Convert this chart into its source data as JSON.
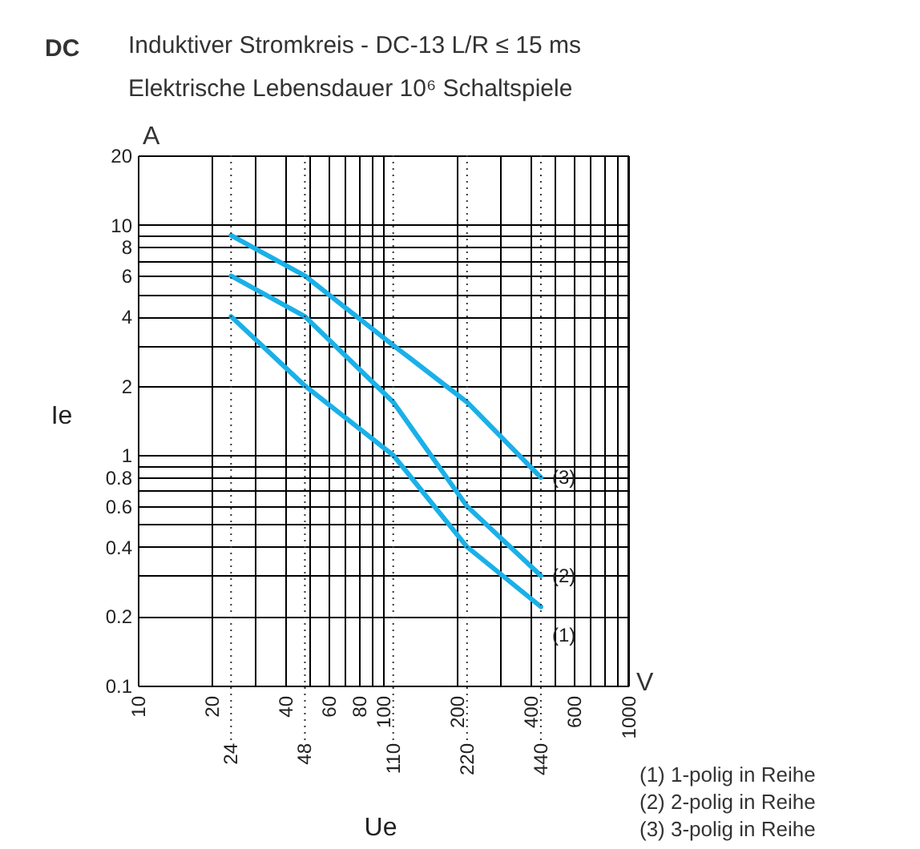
{
  "chart_data": {
    "type": "line",
    "title": "Induktiver Stromkreis - DC-13 L/R  ≤ 15 ms",
    "subtitle": "Elektrische Lebensdauer 10⁶ Schaltspiele",
    "xlabel": "Ue",
    "ylabel": "Ie",
    "annotations": [
      "DC",
      "A",
      "V",
      "(1) 1-polig in Reihe",
      "(2) 2-polig in Reihe",
      "(3) 3-polig in Reihe"
    ],
    "x": [
      24,
      48,
      110,
      220,
      440
    ],
    "series": [
      {
        "name": "(1)",
        "color": "#1ab0e8",
        "values": [
          4,
          2,
          1,
          0.4,
          0.22
        ]
      },
      {
        "name": "(2)",
        "color": "#1ab0e8",
        "values": [
          6,
          4,
          1.7,
          0.6,
          0.3
        ]
      },
      {
        "name": "(3)",
        "color": "#1ab0e8",
        "values": [
          9,
          6,
          3,
          1.7,
          0.8
        ]
      }
    ],
    "log": "xy",
    "xlim": [
      10,
      1000
    ],
    "ylim": [
      0.1,
      20
    ],
    "xticks": [
      10,
      20,
      {
        "value": 30,
        "label": null
      },
      40,
      {
        "value": 50,
        "label": null
      },
      60,
      {
        "value": 70,
        "label": null
      },
      80,
      {
        "value": 90,
        "label": null
      },
      100,
      200,
      {
        "value": 300,
        "label": null
      },
      400,
      {
        "value": 500,
        "label": null
      },
      600,
      {
        "value": 700,
        "label": null
      },
      {
        "value": 800,
        "label": null
      },
      {
        "value": 900,
        "label": null
      },
      1000
    ],
    "yticks": [
      0.1,
      0.2,
      {
        "value": 0.3,
        "label": null
      },
      0.4,
      {
        "value": 0.5,
        "label": null
      },
      0.6,
      {
        "value": 0.7,
        "label": null
      },
      0.8,
      {
        "value": 0.9,
        "label": null
      },
      1,
      2,
      {
        "value": 3,
        "label": null
      },
      4,
      {
        "value": 5,
        "label": null
      },
      6,
      {
        "value": 7,
        "label": null
      },
      8,
      {
        "value": 9,
        "label": null
      },
      10,
      20
    ],
    "ref_lines": [
      {
        "axis": "x",
        "value": 24,
        "label": "24",
        "line_style": "dotted"
      },
      {
        "axis": "x",
        "value": 48,
        "label": "48",
        "line_style": "dotted"
      },
      {
        "axis": "x",
        "value": 110,
        "label": "110",
        "line_style": "dotted"
      },
      {
        "axis": "x",
        "value": 220,
        "label": "220",
        "line_style": "dotted"
      },
      {
        "axis": "x",
        "value": 440,
        "label": "440",
        "line_style": "dotted"
      }
    ],
    "grid": true,
    "legend": false,
    "marker": "none",
    "line_style": "solid"
  }
}
